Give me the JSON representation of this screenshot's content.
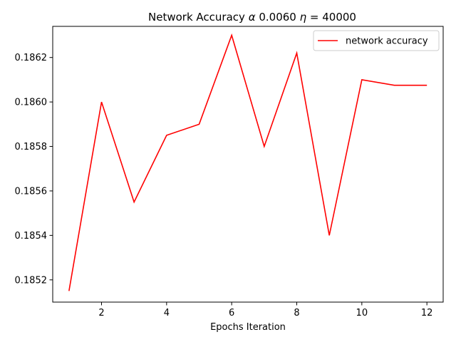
{
  "chart_data": {
    "type": "line",
    "title": "Network Accuracy α 0.0060 η = 40000",
    "title_parts": {
      "prefix": "Network Accuracy ",
      "alpha": "α",
      "middle": " 0.0060 ",
      "eta": "η",
      "suffix": " = 40000"
    },
    "xlabel": "Epochs Iteration",
    "ylabel": "",
    "xlim": [
      0.5,
      12.5
    ],
    "ylim": [
      0.1851,
      0.18634
    ],
    "xticks": [
      2,
      4,
      6,
      8,
      10,
      12
    ],
    "xtick_labels": [
      "2",
      "4",
      "6",
      "8",
      "10",
      "12"
    ],
    "yticks": [
      0.1852,
      0.1854,
      0.1856,
      0.1858,
      0.186,
      0.1862
    ],
    "ytick_labels": [
      "0.1852",
      "0.1854",
      "0.1856",
      "0.1858",
      "0.1860",
      "0.1862"
    ],
    "grid": false,
    "legend_position": "top-right",
    "series": [
      {
        "name": "network accuracy",
        "color": "#ff0000",
        "x": [
          1,
          2,
          3,
          4,
          5,
          6,
          7,
          8,
          9,
          10,
          11,
          12
        ],
        "y": [
          0.18515,
          0.186,
          0.18555,
          0.18585,
          0.1859,
          0.1863,
          0.1858,
          0.18622,
          0.1854,
          0.1861,
          0.186075,
          0.186075
        ]
      }
    ]
  }
}
